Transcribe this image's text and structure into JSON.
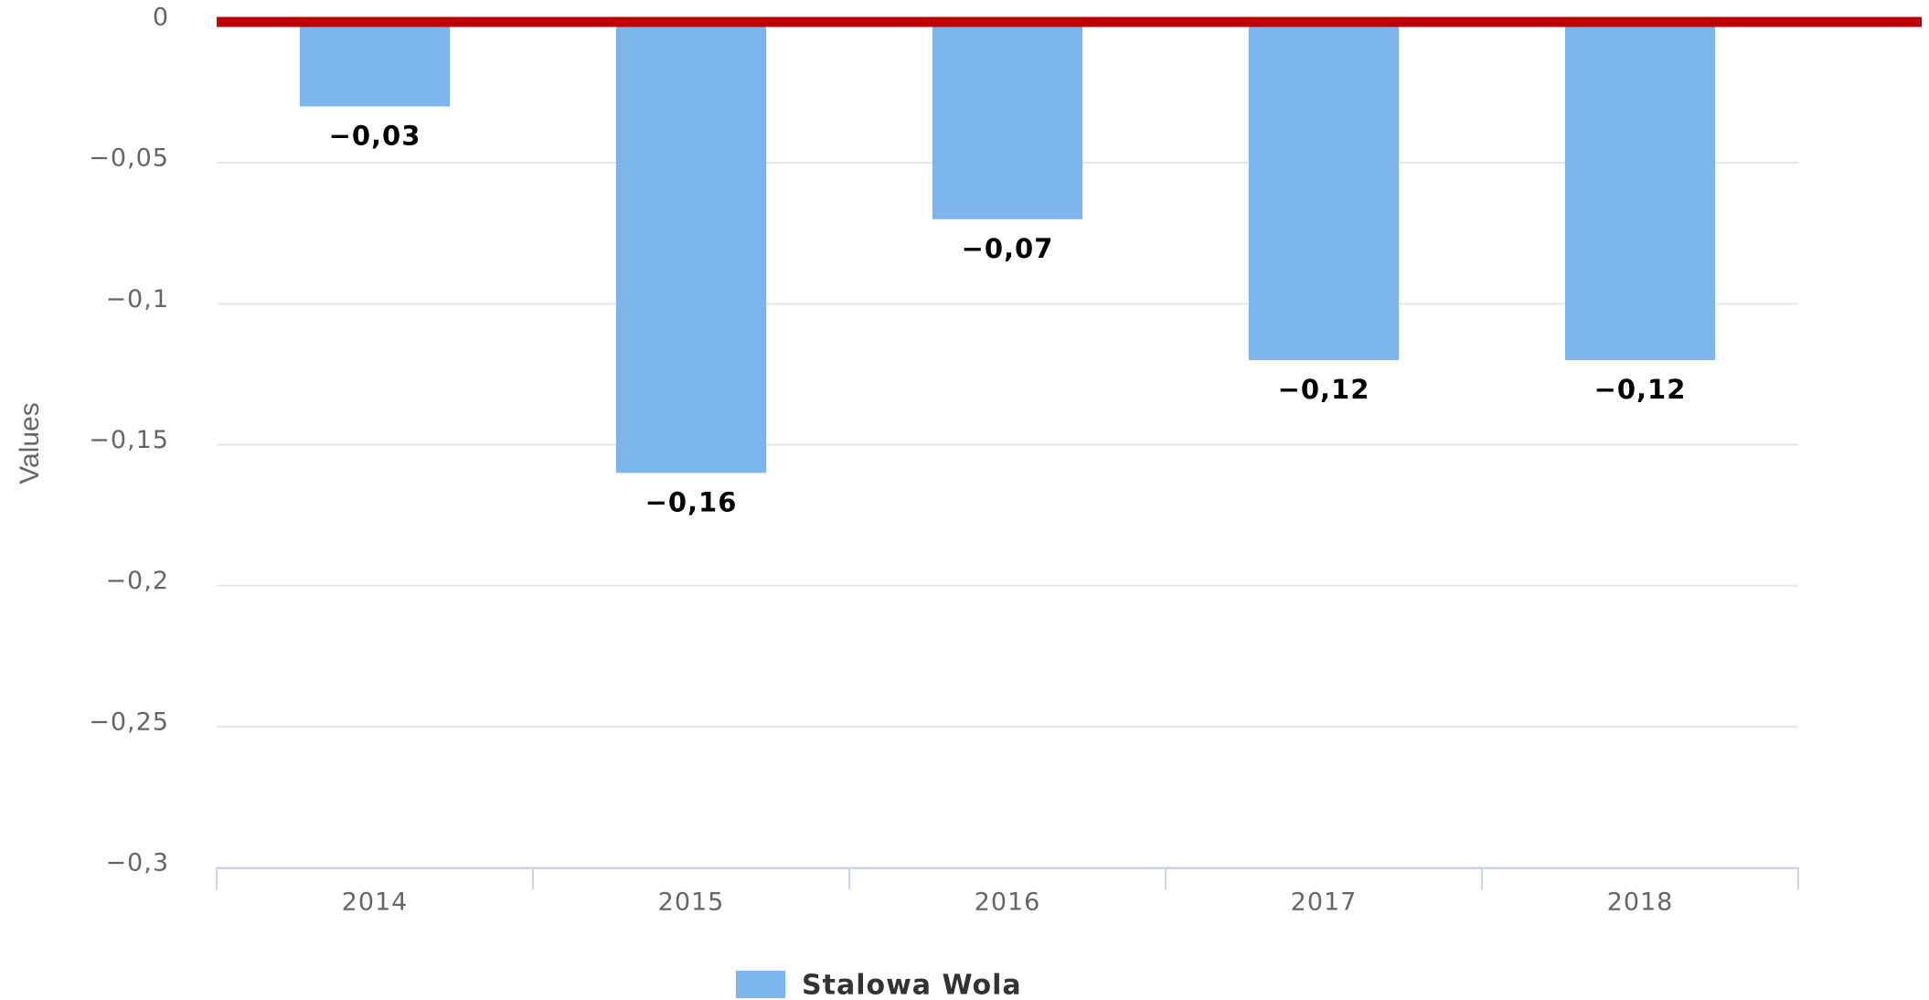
{
  "chart_data": {
    "type": "bar",
    "y_axis_label": "Values",
    "categories": [
      "2014",
      "2015",
      "2016",
      "2017",
      "2018"
    ],
    "series": [
      {
        "name": "Stalowa Wola",
        "color": "#7cb5ec",
        "values": [
          -0.03,
          -0.16,
          -0.07,
          -0.12,
          -0.12
        ],
        "value_labels": [
          "−0,03",
          "−0,16",
          "−0,07",
          "−0,12",
          "−0,12"
        ]
      }
    ],
    "ylim": [
      -0.3,
      0
    ],
    "yticks": [
      0,
      {
        "value": -0.05,
        "label": "−0,05"
      },
      {
        "value": -0.1,
        "label": "−0,1"
      },
      {
        "value": -0.15,
        "label": "−0,15"
      },
      {
        "value": -0.2,
        "label": "−0,2"
      },
      {
        "value": -0.25,
        "label": "−0,25"
      },
      {
        "value": -0.3,
        "label": "−0,3"
      }
    ],
    "grid": true,
    "plot_line": {
      "value": 0,
      "color": "#c00000"
    },
    "legend": "bottom"
  }
}
